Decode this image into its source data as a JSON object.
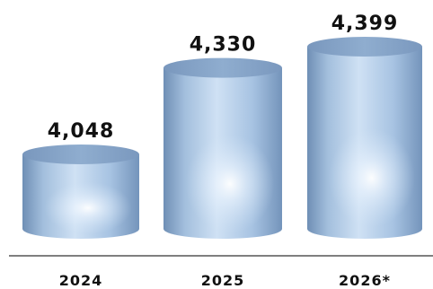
{
  "chart_data": {
    "type": "bar",
    "style": "3d-cylinder",
    "categories": [
      "2024",
      "2025",
      "2026*"
    ],
    "values": [
      4048,
      4330,
      4399
    ],
    "value_labels": [
      "4,048",
      "4,330",
      "4,399"
    ],
    "title": "",
    "xlabel": "",
    "ylabel": "",
    "grid": false,
    "legend": "none",
    "colors": {
      "body_dark": "#7f9fc3",
      "body_light": "#d6e7f8",
      "top": "#86a4c6",
      "axis": "#555555"
    }
  }
}
